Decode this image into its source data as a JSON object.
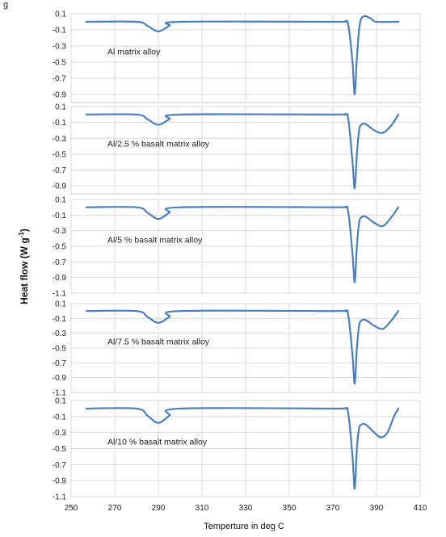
{
  "colors": {
    "series": "#4a7fc1",
    "grid": "#d9d9d9",
    "frame": "#c8c8c8"
  },
  "corner_text": "g",
  "chart_data": {
    "type": "line",
    "ylabel": "Heat flow (W g",
    "ylabel_superscript": "-1",
    "ylabel_suffix": ")",
    "xlabel": "Temperture in deg C",
    "x_ticks": [
      "250",
      "270",
      "290",
      "310",
      "330",
      "350",
      "370",
      "390",
      "410"
    ],
    "xlim": [
      250,
      410
    ],
    "grid": true,
    "panels": [
      {
        "name": "Al matrix alloy",
        "ylim": [
          -1.0,
          0.1
        ],
        "y_ticks": [
          "0.1",
          "-0.1",
          "-0.3",
          "-0.5",
          "-0.7",
          "-0.9"
        ],
        "x": [
          257,
          280,
          285,
          290,
          295,
          300,
          370,
          375,
          377,
          379,
          380,
          381,
          382,
          383,
          385,
          388,
          390,
          400
        ],
        "y": [
          0.0,
          0.0,
          -0.05,
          -0.12,
          -0.05,
          0.0,
          0.0,
          0.0,
          -0.03,
          -0.5,
          -0.9,
          -0.45,
          -0.1,
          0.04,
          0.07,
          0.03,
          0.0,
          0.0
        ]
      },
      {
        "name": "Al/2.5 % basalt matrix alloy",
        "ylim": [
          -1.0,
          0.1
        ],
        "y_ticks": [
          "0.1",
          "-0.1",
          "-0.3",
          "-0.5",
          "-0.7",
          "-0.9"
        ],
        "x": [
          257,
          280,
          285,
          290,
          295,
          300,
          370,
          375,
          377,
          379,
          380,
          381,
          382,
          383,
          385,
          389,
          393,
          397,
          400
        ],
        "y": [
          0.0,
          0.0,
          -0.06,
          -0.13,
          -0.06,
          0.0,
          0.0,
          0.0,
          -0.05,
          -0.6,
          -0.93,
          -0.5,
          -0.2,
          -0.13,
          -0.12,
          -0.2,
          -0.23,
          -0.13,
          0.0
        ]
      },
      {
        "name": "Al/5 % basalt  matrix alloy",
        "ylim": [
          -1.1,
          0.1
        ],
        "y_ticks": [
          "0.1",
          "-0.1",
          "-0.3",
          "-0.5",
          "-0.7",
          "-0.9",
          "-1.1"
        ],
        "x": [
          257,
          280,
          285,
          290,
          295,
          300,
          370,
          375,
          377,
          379,
          380,
          381,
          382,
          383,
          385,
          389,
          393,
          397,
          400
        ],
        "y": [
          0.0,
          0.0,
          -0.07,
          -0.15,
          -0.07,
          0.0,
          0.0,
          0.0,
          -0.05,
          -0.6,
          -0.96,
          -0.5,
          -0.2,
          -0.13,
          -0.12,
          -0.2,
          -0.24,
          -0.12,
          0.0
        ]
      },
      {
        "name": "Al/7.5 % basalt matrix alloy",
        "ylim": [
          -1.1,
          0.1
        ],
        "y_ticks": [
          "0.1",
          "-0.1",
          "-0.3",
          "-0.5",
          "-0.7",
          "-0.9",
          "-1.1"
        ],
        "x": [
          257,
          280,
          285,
          290,
          295,
          300,
          370,
          375,
          377,
          379,
          380,
          381,
          382,
          383,
          385,
          389,
          393,
          397,
          400
        ],
        "y": [
          0.0,
          0.0,
          -0.08,
          -0.16,
          -0.08,
          0.0,
          0.0,
          0.0,
          -0.05,
          -0.6,
          -0.98,
          -0.5,
          -0.2,
          -0.13,
          -0.12,
          -0.2,
          -0.24,
          -0.12,
          0.0
        ]
      },
      {
        "name": "Al/10 % basalt matrix alloy",
        "ylim": [
          -1.1,
          0.1
        ],
        "y_ticks": [
          "0.1",
          "-0.1",
          "-0.3",
          "-0.5",
          "-0.7",
          "-0.9",
          "-1.1"
        ],
        "x": [
          257,
          280,
          285,
          290,
          295,
          300,
          370,
          375,
          377,
          379,
          380,
          381,
          382,
          383,
          385,
          389,
          392,
          395,
          398,
          400
        ],
        "y": [
          0.0,
          0.0,
          -0.09,
          -0.18,
          -0.09,
          0.0,
          0.0,
          0.0,
          -0.05,
          -0.6,
          -1.0,
          -0.5,
          -0.25,
          -0.2,
          -0.2,
          -0.3,
          -0.36,
          -0.3,
          -0.1,
          0.0
        ]
      }
    ]
  }
}
